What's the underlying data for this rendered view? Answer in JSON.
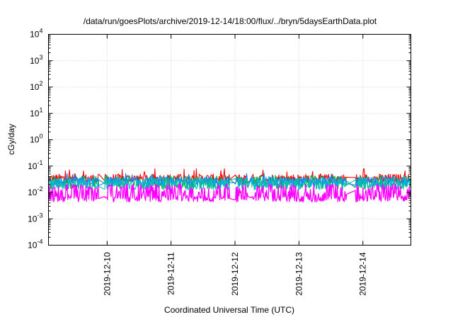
{
  "chart_data": {
    "type": "line",
    "title": "/data/run/goesPlots/archive/2019-12-14/18:00/flux/../bryn/5daysEarthData.plot",
    "xlabel": "Coordinated Universal Time (UTC)",
    "ylabel": "cGy/day",
    "yscale": "log",
    "ylim": [
      0.0001,
      10000
    ],
    "xlim": [
      "2019-12-09 02:00",
      "2019-12-14 18:00"
    ],
    "x_ticks": [
      "2019-12-10",
      "2019-12-11",
      "2019-12-12",
      "2019-12-13",
      "2019-12-14"
    ],
    "y_ticks": [
      {
        "value": 0.0001,
        "base": "10",
        "exp": "-4"
      },
      {
        "value": 0.001,
        "base": "10",
        "exp": "-3"
      },
      {
        "value": 0.01,
        "base": "10",
        "exp": "-2"
      },
      {
        "value": 0.1,
        "base": "10",
        "exp": "-1"
      },
      {
        "value": 1,
        "base": "10",
        "exp": "0"
      },
      {
        "value": 10,
        "base": "10",
        "exp": "1"
      },
      {
        "value": 100,
        "base": "10",
        "exp": "2"
      },
      {
        "value": 1000,
        "base": "10",
        "exp": "3"
      },
      {
        "value": 10000,
        "base": "10",
        "exp": "4"
      }
    ],
    "grid": true,
    "legend": "none",
    "gaps": [
      [
        "2019-12-09 21:00",
        "2019-12-09 23:00"
      ],
      [
        "2019-12-11 22:00",
        "2019-12-12 00:00"
      ],
      [
        "2019-12-12 05:00",
        "2019-12-12 06:00"
      ],
      [
        "2019-12-13 18:00",
        "2019-12-13 21:00"
      ]
    ],
    "series": [
      {
        "color": "#ff0000",
        "base": 0.034,
        "spread": 0.34,
        "peak": 0.075
      },
      {
        "color": "#00b050",
        "base": 0.024,
        "spread": 0.5,
        "peak": 0.045
      },
      {
        "color": "#1f7fff",
        "base": 0.026,
        "spread": 0.35,
        "peak": 0.05
      },
      {
        "color": "#00c0c0",
        "base": 0.021,
        "spread": 0.45,
        "peak": 0.04
      },
      {
        "color": "#ff00ff",
        "base": 0.0055,
        "spread": 1.1,
        "peak": 0.02
      }
    ]
  }
}
